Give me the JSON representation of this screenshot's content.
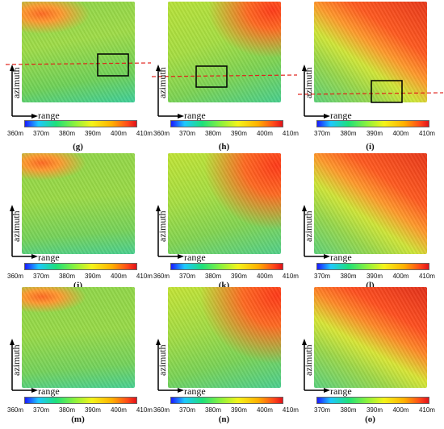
{
  "axes": {
    "vertical_label": "azimuth",
    "horizontal_label": "range"
  },
  "colorbar": {
    "ticks_a": [
      "360m",
      "370m",
      "380m",
      "390m",
      "400m",
      "410m"
    ],
    "ticks_b": [
      "370m",
      "380m",
      "390m",
      "400m",
      "410m"
    ]
  },
  "panels": [
    {
      "id": "g",
      "caption": "(g)"
    },
    {
      "id": "h",
      "caption": "(h)"
    },
    {
      "id": "i",
      "caption": "(i)"
    },
    {
      "id": "j",
      "caption": "(j)"
    },
    {
      "id": "k",
      "caption": "(k)"
    },
    {
      "id": "l",
      "caption": "(l)"
    },
    {
      "id": "m",
      "caption": "(m)"
    },
    {
      "id": "n",
      "caption": "(n)"
    },
    {
      "id": "o",
      "caption": "(o)"
    }
  ],
  "colors": {
    "dashed_line": "#e0201a",
    "box": "#000000"
  }
}
